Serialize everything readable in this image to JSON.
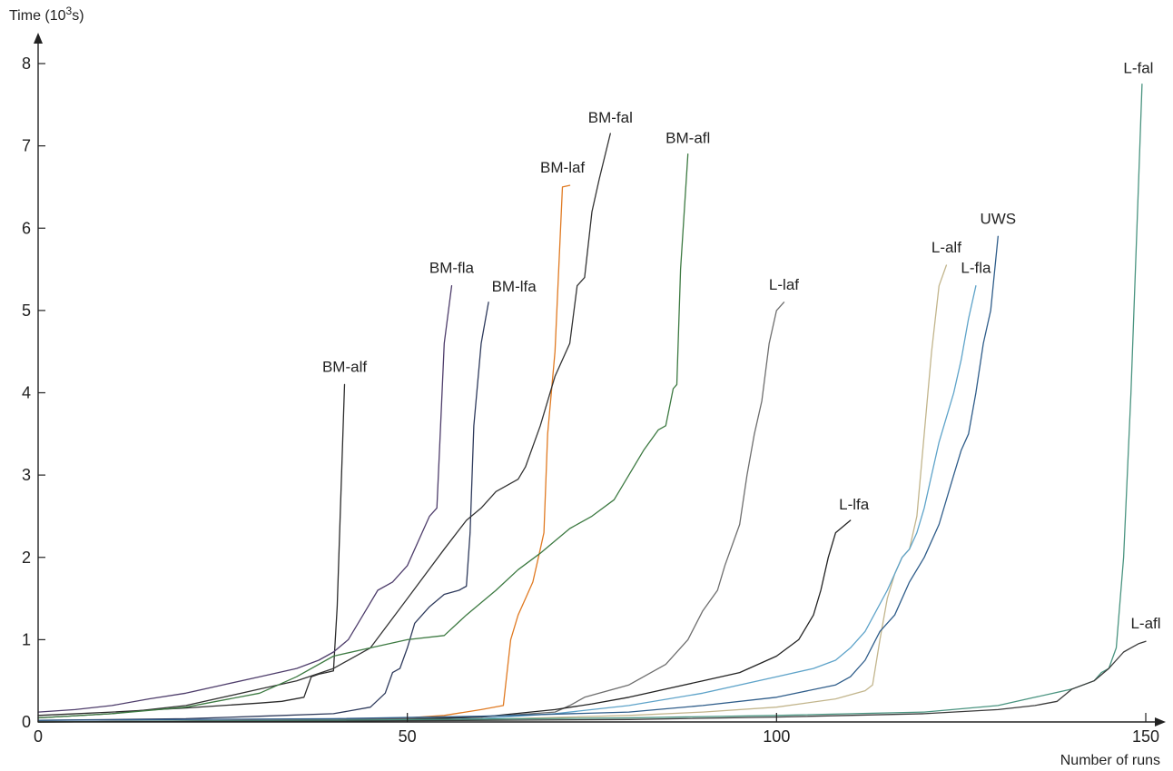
{
  "chart_data": {
    "type": "line",
    "ylabel": "Time (10",
    "ylabel_sup": "3",
    "ylabel_suffix": "s)",
    "xlabel": "Number of runs",
    "xlim": [
      0,
      150
    ],
    "ylim": [
      0,
      8
    ],
    "x_ticks": [
      0,
      50,
      100,
      150
    ],
    "y_ticks": [
      0,
      1,
      2,
      3,
      4,
      5,
      6,
      7,
      8
    ],
    "grid": false,
    "legend": "inline labels at line ends",
    "series": [
      {
        "name": "BM-alf",
        "color": "#2b2b2b",
        "points": [
          [
            0,
            0.08
          ],
          [
            10,
            0.12
          ],
          [
            20,
            0.17
          ],
          [
            25,
            0.2
          ],
          [
            30,
            0.23
          ],
          [
            33,
            0.25
          ],
          [
            36,
            0.3
          ],
          [
            37,
            0.55
          ],
          [
            38,
            0.58
          ],
          [
            39,
            0.6
          ],
          [
            40,
            0.62
          ],
          [
            40.5,
            1.4
          ],
          [
            41.5,
            4.1
          ]
        ]
      },
      {
        "name": "BM-fla",
        "color": "#4e3d6b",
        "points": [
          [
            0,
            0.12
          ],
          [
            5,
            0.15
          ],
          [
            10,
            0.2
          ],
          [
            15,
            0.28
          ],
          [
            20,
            0.35
          ],
          [
            25,
            0.45
          ],
          [
            30,
            0.55
          ],
          [
            35,
            0.65
          ],
          [
            38,
            0.75
          ],
          [
            40,
            0.85
          ],
          [
            42,
            1.0
          ],
          [
            44,
            1.3
          ],
          [
            46,
            1.6
          ],
          [
            48,
            1.7
          ],
          [
            50,
            1.9
          ],
          [
            52,
            2.3
          ],
          [
            53,
            2.5
          ],
          [
            54,
            2.6
          ],
          [
            54.5,
            3.6
          ],
          [
            55,
            4.6
          ],
          [
            56,
            5.3
          ]
        ]
      },
      {
        "name": "BM-lfa",
        "color": "#2e3a5c",
        "points": [
          [
            0,
            0.02
          ],
          [
            20,
            0.04
          ],
          [
            30,
            0.07
          ],
          [
            40,
            0.1
          ],
          [
            45,
            0.18
          ],
          [
            47,
            0.35
          ],
          [
            48,
            0.6
          ],
          [
            49,
            0.65
          ],
          [
            50,
            0.9
          ],
          [
            51,
            1.2
          ],
          [
            53,
            1.4
          ],
          [
            55,
            1.55
          ],
          [
            57,
            1.6
          ],
          [
            58,
            1.65
          ],
          [
            58.5,
            2.3
          ],
          [
            59,
            3.6
          ],
          [
            60,
            4.6
          ],
          [
            61,
            5.1
          ]
        ]
      },
      {
        "name": "BM-laf",
        "color": "#e07a22",
        "points": [
          [
            0,
            0.0
          ],
          [
            20,
            0.01
          ],
          [
            40,
            0.03
          ],
          [
            50,
            0.05
          ],
          [
            55,
            0.08
          ],
          [
            60,
            0.15
          ],
          [
            63,
            0.2
          ],
          [
            64,
            1.0
          ],
          [
            65,
            1.3
          ],
          [
            66,
            1.5
          ],
          [
            67,
            1.7
          ],
          [
            68,
            2.1
          ],
          [
            68.5,
            2.3
          ],
          [
            69,
            3.5
          ],
          [
            70,
            4.5
          ],
          [
            71,
            6.5
          ],
          [
            72,
            6.52
          ]
        ]
      },
      {
        "name": "BM-fal",
        "color": "#333333",
        "points": [
          [
            0,
            0.05
          ],
          [
            10,
            0.1
          ],
          [
            20,
            0.2
          ],
          [
            30,
            0.4
          ],
          [
            35,
            0.5
          ],
          [
            40,
            0.65
          ],
          [
            45,
            0.9
          ],
          [
            50,
            1.5
          ],
          [
            55,
            2.1
          ],
          [
            58,
            2.45
          ],
          [
            60,
            2.6
          ],
          [
            62,
            2.8
          ],
          [
            65,
            2.95
          ],
          [
            66,
            3.1
          ],
          [
            68,
            3.6
          ],
          [
            70,
            4.2
          ],
          [
            72,
            4.6
          ],
          [
            73,
            5.3
          ],
          [
            74,
            5.4
          ],
          [
            75,
            6.2
          ],
          [
            76,
            6.6
          ],
          [
            77.5,
            7.15
          ]
        ]
      },
      {
        "name": "BM-afl",
        "color": "#3d7a42",
        "points": [
          [
            0,
            0.05
          ],
          [
            10,
            0.1
          ],
          [
            20,
            0.18
          ],
          [
            30,
            0.35
          ],
          [
            35,
            0.55
          ],
          [
            40,
            0.8
          ],
          [
            45,
            0.9
          ],
          [
            50,
            1.0
          ],
          [
            55,
            1.05
          ],
          [
            58,
            1.3
          ],
          [
            60,
            1.45
          ],
          [
            62,
            1.6
          ],
          [
            65,
            1.85
          ],
          [
            68,
            2.05
          ],
          [
            70,
            2.2
          ],
          [
            72,
            2.35
          ],
          [
            75,
            2.5
          ],
          [
            78,
            2.7
          ],
          [
            80,
            3.0
          ],
          [
            82,
            3.3
          ],
          [
            84,
            3.55
          ],
          [
            85,
            3.6
          ],
          [
            86,
            4.05
          ],
          [
            86.5,
            4.1
          ],
          [
            87,
            5.5
          ],
          [
            88,
            6.9
          ]
        ]
      },
      {
        "name": "L-laf",
        "color": "#6e6e6e",
        "points": [
          [
            0,
            0.0
          ],
          [
            30,
            0.02
          ],
          [
            50,
            0.04
          ],
          [
            60,
            0.06
          ],
          [
            70,
            0.12
          ],
          [
            72,
            0.2
          ],
          [
            74,
            0.3
          ],
          [
            76,
            0.35
          ],
          [
            80,
            0.45
          ],
          [
            85,
            0.7
          ],
          [
            88,
            1.0
          ],
          [
            90,
            1.35
          ],
          [
            92,
            1.6
          ],
          [
            93,
            1.9
          ],
          [
            95,
            2.4
          ],
          [
            96,
            3.0
          ],
          [
            97,
            3.5
          ],
          [
            98,
            3.9
          ],
          [
            99,
            4.6
          ],
          [
            100,
            5.0
          ],
          [
            101,
            5.1
          ]
        ]
      },
      {
        "name": "L-lfa",
        "color": "#222222",
        "points": [
          [
            0,
            0.0
          ],
          [
            30,
            0.01
          ],
          [
            50,
            0.03
          ],
          [
            60,
            0.06
          ],
          [
            70,
            0.15
          ],
          [
            75,
            0.22
          ],
          [
            80,
            0.3
          ],
          [
            85,
            0.4
          ],
          [
            90,
            0.5
          ],
          [
            95,
            0.6
          ],
          [
            100,
            0.8
          ],
          [
            103,
            1.0
          ],
          [
            105,
            1.3
          ],
          [
            106,
            1.6
          ],
          [
            107,
            2.0
          ],
          [
            108,
            2.3
          ],
          [
            110,
            2.45
          ]
        ]
      },
      {
        "name": "L-alf",
        "color": "#c2b58c",
        "points": [
          [
            0,
            0.0
          ],
          [
            40,
            0.01
          ],
          [
            60,
            0.03
          ],
          [
            80,
            0.08
          ],
          [
            90,
            0.12
          ],
          [
            100,
            0.18
          ],
          [
            108,
            0.28
          ],
          [
            112,
            0.38
          ],
          [
            113,
            0.45
          ],
          [
            114,
            1.0
          ],
          [
            115,
            1.5
          ],
          [
            116,
            1.8
          ],
          [
            117,
            2.0
          ],
          [
            118,
            2.1
          ],
          [
            119,
            2.5
          ],
          [
            120,
            3.5
          ],
          [
            121,
            4.5
          ],
          [
            122,
            5.3
          ],
          [
            123,
            5.55
          ]
        ]
      },
      {
        "name": "L-fla",
        "color": "#5ea3c9",
        "points": [
          [
            0,
            0.0
          ],
          [
            40,
            0.01
          ],
          [
            60,
            0.04
          ],
          [
            70,
            0.1
          ],
          [
            80,
            0.2
          ],
          [
            90,
            0.35
          ],
          [
            100,
            0.55
          ],
          [
            105,
            0.65
          ],
          [
            108,
            0.75
          ],
          [
            110,
            0.9
          ],
          [
            112,
            1.1
          ],
          [
            115,
            1.6
          ],
          [
            116,
            1.8
          ],
          [
            117,
            2.0
          ],
          [
            118,
            2.1
          ],
          [
            119,
            2.3
          ],
          [
            120,
            2.6
          ],
          [
            121,
            3.0
          ],
          [
            122,
            3.4
          ],
          [
            123,
            3.7
          ],
          [
            124,
            4.0
          ],
          [
            125,
            4.4
          ],
          [
            126,
            4.9
          ],
          [
            127,
            5.3
          ]
        ]
      },
      {
        "name": "UWS",
        "color": "#2f5d8a",
        "points": [
          [
            0,
            0.02
          ],
          [
            40,
            0.04
          ],
          [
            60,
            0.07
          ],
          [
            80,
            0.12
          ],
          [
            90,
            0.2
          ],
          [
            100,
            0.3
          ],
          [
            108,
            0.45
          ],
          [
            110,
            0.55
          ],
          [
            112,
            0.75
          ],
          [
            114,
            1.1
          ],
          [
            116,
            1.3
          ],
          [
            118,
            1.7
          ],
          [
            120,
            2.0
          ],
          [
            122,
            2.4
          ],
          [
            124,
            3.0
          ],
          [
            125,
            3.3
          ],
          [
            126,
            3.5
          ],
          [
            127,
            4.0
          ],
          [
            128,
            4.6
          ],
          [
            129,
            5.0
          ],
          [
            130,
            5.9
          ]
        ]
      },
      {
        "name": "L-fal",
        "color": "#4a9480",
        "points": [
          [
            0,
            0.0
          ],
          [
            40,
            0.02
          ],
          [
            80,
            0.05
          ],
          [
            100,
            0.08
          ],
          [
            120,
            0.12
          ],
          [
            130,
            0.2
          ],
          [
            135,
            0.3
          ],
          [
            140,
            0.4
          ],
          [
            143,
            0.5
          ],
          [
            144,
            0.6
          ],
          [
            145,
            0.65
          ],
          [
            146,
            0.9
          ],
          [
            147,
            2.0
          ],
          [
            148,
            4.0
          ],
          [
            149,
            6.5
          ],
          [
            149.5,
            7.75
          ]
        ]
      },
      {
        "name": "L-afl",
        "color": "#3a3a3a",
        "points": [
          [
            0,
            0.0
          ],
          [
            40,
            0.01
          ],
          [
            80,
            0.03
          ],
          [
            100,
            0.06
          ],
          [
            120,
            0.1
          ],
          [
            130,
            0.15
          ],
          [
            135,
            0.2
          ],
          [
            138,
            0.25
          ],
          [
            140,
            0.4
          ],
          [
            143,
            0.5
          ],
          [
            145,
            0.65
          ],
          [
            146,
            0.75
          ],
          [
            147,
            0.85
          ],
          [
            148,
            0.9
          ],
          [
            149,
            0.95
          ],
          [
            150,
            0.98
          ]
        ]
      }
    ]
  }
}
